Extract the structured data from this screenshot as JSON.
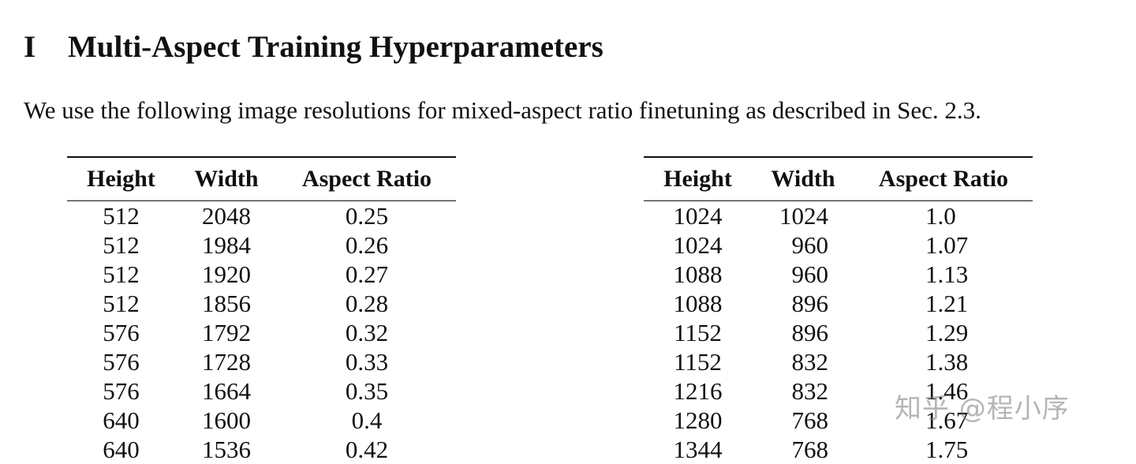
{
  "section": {
    "number": "I",
    "title": "Multi-Aspect Training Hyperparameters"
  },
  "intro_text": "We use the following image resolutions for mixed-aspect ratio finetuning as described in Sec. 2.3.",
  "tables": [
    {
      "columns": [
        "Height",
        "Width",
        "Aspect Ratio"
      ],
      "rows": [
        [
          "512",
          "2048",
          "0.25"
        ],
        [
          "512",
          "1984",
          "0.26"
        ],
        [
          "512",
          "1920",
          "0.27"
        ],
        [
          "512",
          "1856",
          "0.28"
        ],
        [
          "576",
          "1792",
          "0.32"
        ],
        [
          "576",
          "1728",
          "0.33"
        ],
        [
          "576",
          "1664",
          "0.35"
        ],
        [
          "640",
          "1600",
          "0.4"
        ],
        [
          "640",
          "1536",
          "0.42"
        ]
      ]
    },
    {
      "columns": [
        "Height",
        "Width",
        "Aspect Ratio"
      ],
      "rows": [
        [
          "1024",
          "1024",
          "1.0"
        ],
        [
          "1024",
          "960",
          "1.07"
        ],
        [
          "1088",
          "960",
          "1.13"
        ],
        [
          "1088",
          "896",
          "1.21"
        ],
        [
          "1152",
          "896",
          "1.29"
        ],
        [
          "1152",
          "832",
          "1.38"
        ],
        [
          "1216",
          "832",
          "1.46"
        ],
        [
          "1280",
          "768",
          "1.67"
        ],
        [
          "1344",
          "768",
          "1.75"
        ]
      ]
    }
  ],
  "watermark": "知乎 @程小序"
}
